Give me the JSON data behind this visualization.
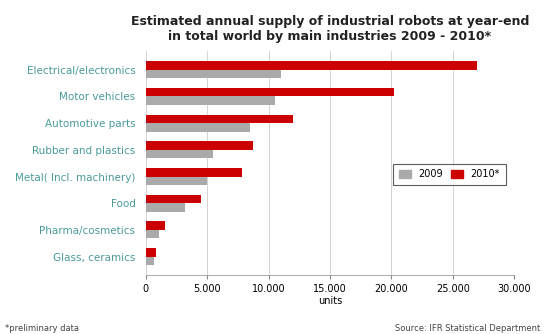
{
  "title": "Estimated annual supply of industrial robots at year-end\nin total world by main industries 2009 - 2010*",
  "categories": [
    "Electrical/electronics",
    "Motor vehicles",
    "Automotive parts",
    "Rubber and plastics",
    "Metal( Incl. machinery)",
    "Food",
    "Pharma/cosmetics",
    "Glass, ceramics"
  ],
  "values_2009": [
    11000,
    10500,
    8500,
    5500,
    5000,
    3200,
    1100,
    700
  ],
  "values_2010": [
    27000,
    20200,
    12000,
    8700,
    7800,
    4500,
    1600,
    800
  ],
  "color_2009": "#aaaaaa",
  "color_2010": "#cc0000",
  "xlabel": "units",
  "xlim": [
    0,
    30000
  ],
  "xticks": [
    0,
    5000,
    10000,
    15000,
    20000,
    25000,
    30000
  ],
  "xtick_labels": [
    "0",
    "5.000",
    "10.000",
    "15.000",
    "20.000",
    "25.000",
    "30.000"
  ],
  "legend_labels": [
    "2009",
    "2010*"
  ],
  "footnote": "*preliminary data",
  "source": "Source: IFR Statistical Department",
  "bar_height": 0.32,
  "label_color": "#4a9a9a",
  "background_color": "#ffffff",
  "title_fontsize": 9,
  "tick_fontsize": 7,
  "label_fontsize": 7.5
}
